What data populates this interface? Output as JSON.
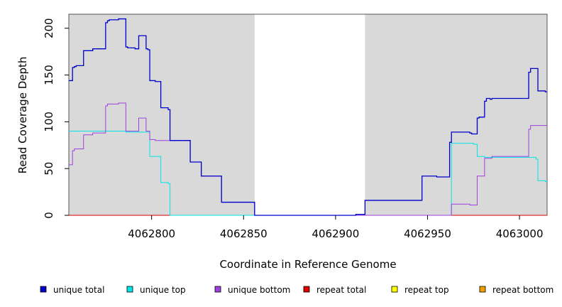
{
  "chart_data": {
    "type": "line",
    "xlabel": "Coordinate in Reference Genome",
    "ylabel": "Read Coverage Depth",
    "xlim": [
      4062755,
      4063015
    ],
    "ylim": [
      0,
      215
    ],
    "x_ticks": [
      4062800,
      4062850,
      4062900,
      4062950,
      4063000
    ],
    "y_ticks": [
      0,
      50,
      100,
      150,
      200
    ],
    "x_tick_labels": [
      "4062800",
      "4062850",
      "4062900",
      "4062950",
      "4063000"
    ],
    "y_tick_labels": [
      "0",
      "50",
      "100",
      "150",
      "200"
    ],
    "shaded_regions": [
      [
        4062755,
        4062856
      ],
      [
        4062916,
        4063015
      ]
    ],
    "shade_color": "#d9d9d9",
    "legend_position": "bottom",
    "series": [
      {
        "name": "unique total",
        "color": "#0000cc",
        "points": [
          [
            4062755,
            144
          ],
          [
            4062757,
            158
          ],
          [
            4062758,
            159
          ],
          [
            4062759,
            160
          ],
          [
            4062763,
            176
          ],
          [
            4062768,
            178
          ],
          [
            4062775,
            206
          ],
          [
            4062776,
            208
          ],
          [
            4062777,
            209
          ],
          [
            4062782,
            210
          ],
          [
            4062786,
            180
          ],
          [
            4062787,
            179
          ],
          [
            4062791,
            178
          ],
          [
            4062793,
            192
          ],
          [
            4062797,
            178
          ],
          [
            4062798,
            177
          ],
          [
            4062799,
            144
          ],
          [
            4062802,
            143
          ],
          [
            4062805,
            115
          ],
          [
            4062809,
            113
          ],
          [
            4062810,
            80
          ],
          [
            4062821,
            57
          ],
          [
            4062827,
            42
          ],
          [
            4062838,
            14
          ],
          [
            4062856,
            0
          ],
          [
            4062911,
            1
          ],
          [
            4062916,
            16
          ],
          [
            4062947,
            42
          ],
          [
            4062955,
            41
          ],
          [
            4062962,
            78
          ],
          [
            4062963,
            89
          ],
          [
            4062973,
            88
          ],
          [
            4062974,
            87
          ],
          [
            4062977,
            104
          ],
          [
            4062978,
            105
          ],
          [
            4062981,
            122
          ],
          [
            4062982,
            125
          ],
          [
            4062984,
            124
          ],
          [
            4062985,
            125
          ],
          [
            4063005,
            153
          ],
          [
            4063006,
            157
          ],
          [
            4063010,
            133
          ],
          [
            4063014,
            132
          ]
        ]
      },
      {
        "name": "unique top",
        "color": "#00e5e5",
        "points": [
          [
            4062755,
            90
          ],
          [
            4062786,
            89
          ],
          [
            4062797,
            89
          ],
          [
            4062799,
            63
          ],
          [
            4062805,
            35
          ],
          [
            4062809,
            34
          ],
          [
            4062810,
            0
          ],
          [
            4062963,
            77
          ],
          [
            4062975,
            76
          ],
          [
            4062977,
            63
          ],
          [
            4062981,
            62
          ],
          [
            4063005,
            62
          ],
          [
            4063009,
            60
          ],
          [
            4063010,
            37
          ],
          [
            4063014,
            36
          ]
        ]
      },
      {
        "name": "unique bottom",
        "color": "#a040e0",
        "points": [
          [
            4062755,
            54
          ],
          [
            4062757,
            69
          ],
          [
            4062758,
            71
          ],
          [
            4062763,
            86
          ],
          [
            4062768,
            88
          ],
          [
            4062775,
            117
          ],
          [
            4062776,
            119
          ],
          [
            4062782,
            120
          ],
          [
            4062786,
            90
          ],
          [
            4062793,
            104
          ],
          [
            4062797,
            90
          ],
          [
            4062799,
            81
          ],
          [
            4062802,
            80
          ],
          [
            4062810,
            80
          ],
          [
            4062821,
            57
          ],
          [
            4062827,
            42
          ],
          [
            4062838,
            14
          ],
          [
            4062856,
            0
          ],
          [
            4062963,
            12
          ],
          [
            4062973,
            11
          ],
          [
            4062977,
            42
          ],
          [
            4062981,
            61
          ],
          [
            4062985,
            63
          ],
          [
            4063005,
            92
          ],
          [
            4063006,
            96
          ],
          [
            4063015,
            96
          ]
        ]
      },
      {
        "name": "repeat total",
        "color": "#e00000",
        "points": [
          [
            4062755,
            0
          ],
          [
            4063015,
            0
          ]
        ]
      },
      {
        "name": "repeat top",
        "color": "#ffff00",
        "points": [
          [
            4062755,
            0
          ],
          [
            4063015,
            0
          ]
        ]
      },
      {
        "name": "repeat bottom",
        "color": "#f0a000",
        "points": [
          [
            4062755,
            0
          ],
          [
            4063015,
            0
          ]
        ]
      }
    ]
  }
}
